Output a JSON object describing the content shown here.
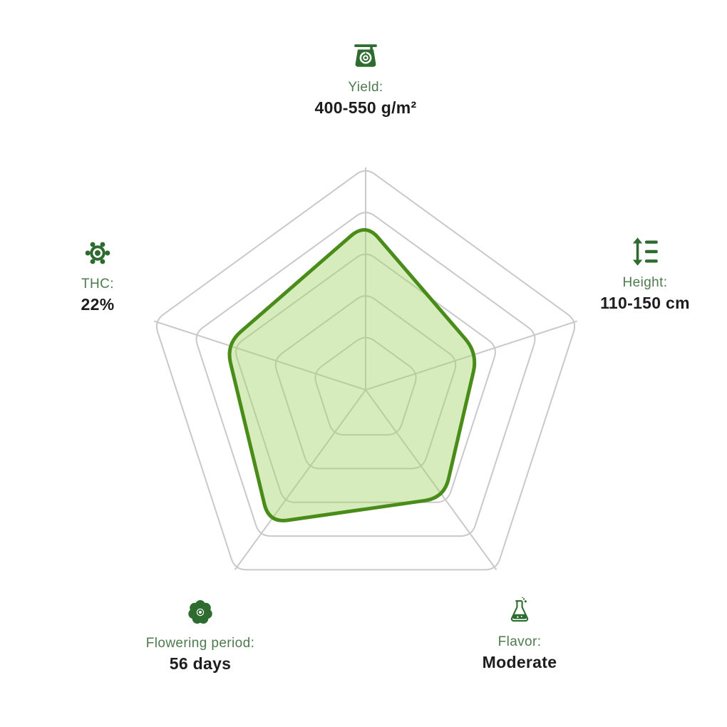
{
  "chart_data": {
    "type": "radar",
    "title": "",
    "max_value": 100,
    "grid_levels": [
      25,
      43.75,
      62.5,
      81.25,
      100
    ],
    "grid_on": true,
    "axes": [
      {
        "id": "yield",
        "label": "Yield:",
        "value_text": "400-550 g/m²",
        "value": 75,
        "icon": "scale-icon"
      },
      {
        "id": "height",
        "label": "Height:",
        "value_text": "110-150 cm",
        "value": 53,
        "icon": "height-icon"
      },
      {
        "id": "flavor",
        "label": "Flavor:",
        "value_text": "Moderate",
        "value": 60,
        "icon": "flask-icon"
      },
      {
        "id": "flowering",
        "label": "Flowering period:",
        "value_text": "56 days",
        "value": 74,
        "icon": "flower-icon"
      },
      {
        "id": "thc",
        "label": "THC:",
        "value_text": "22%",
        "value": 66,
        "icon": "atom-icon"
      }
    ],
    "colors": {
      "data_stroke": "#4a8c1a",
      "data_fill": "rgba(164,212,106,0.45)",
      "grid_line": "#c9c9c9",
      "icon_green": "#2d6b2f",
      "label_green": "#4f7a4f",
      "value_text": "#1d1d1d"
    }
  }
}
